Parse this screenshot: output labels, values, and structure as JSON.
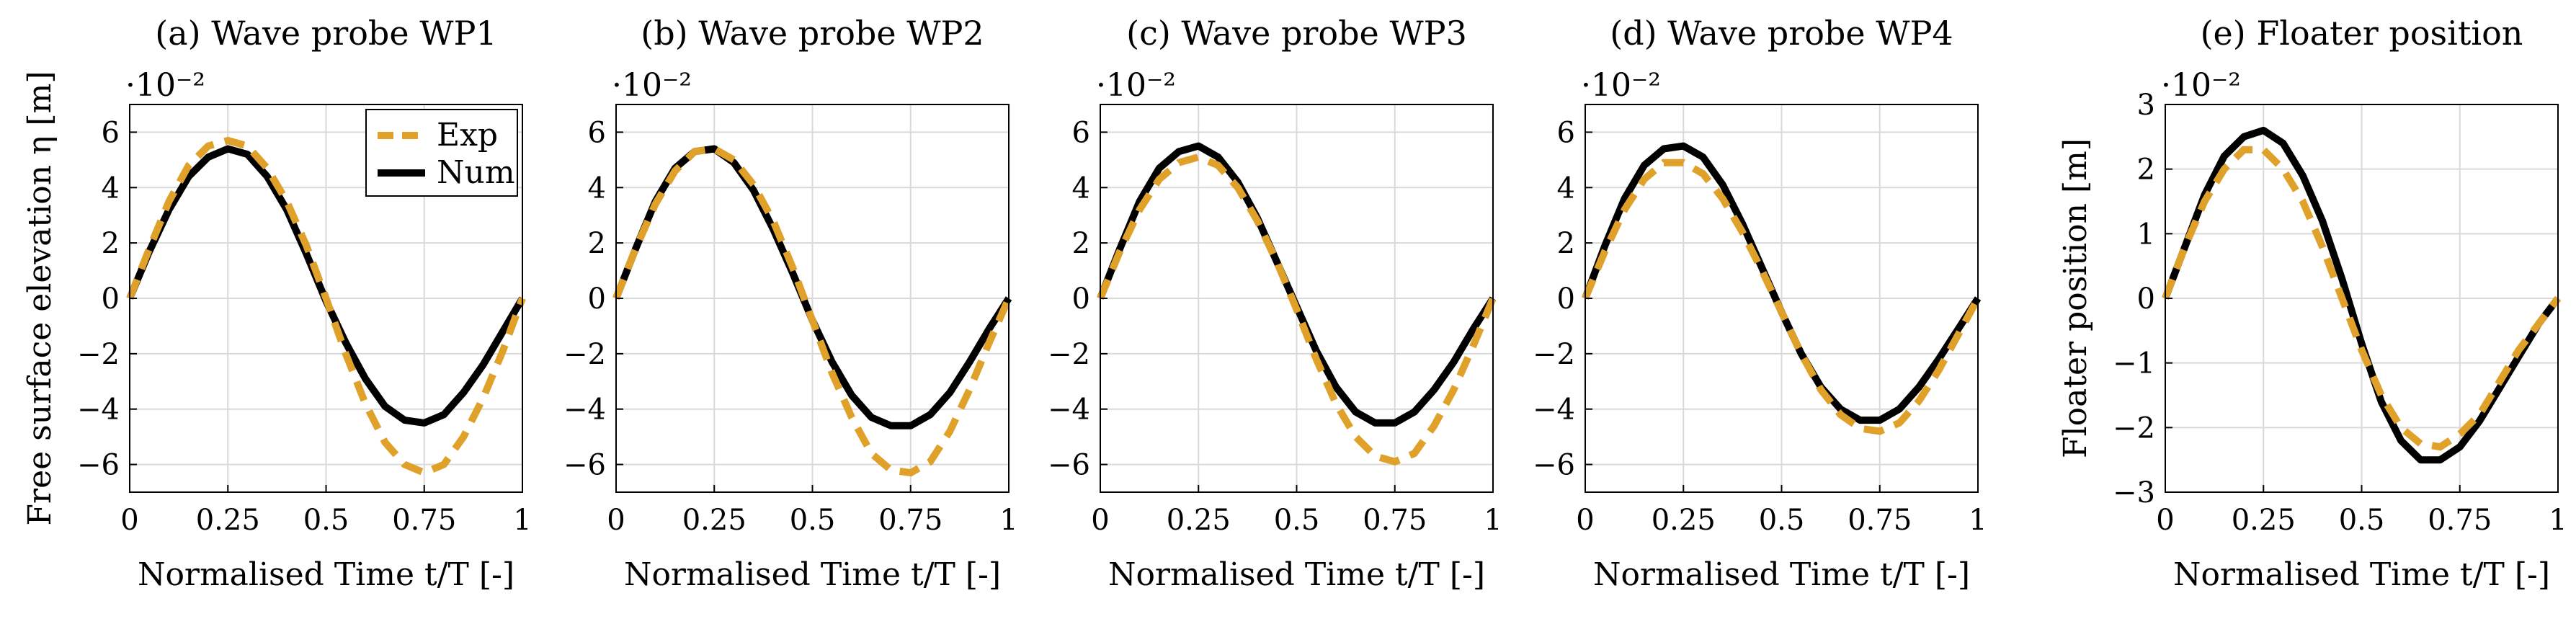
{
  "figure": {
    "legend": {
      "exp_label": "Exp",
      "num_label": "Num",
      "exp_color": "#e0a12a",
      "num_color": "#000000"
    },
    "grid": true
  },
  "chart_data": [
    {
      "type": "line",
      "title": "(a) Wave probe WP1",
      "xlabel": "Normalised Time t/T [-]",
      "ylabel": "Free surface elevation η [m]",
      "y_exponent": "·10⁻²",
      "xlim": [
        0,
        1
      ],
      "ylim": [
        -7,
        7
      ],
      "xticks": [
        0,
        0.25,
        0.5,
        0.75,
        1
      ],
      "xtick_labels": [
        "0",
        "0.25",
        "0.5",
        "0.75",
        "1"
      ],
      "yticks": [
        -6,
        -4,
        -2,
        0,
        2,
        4,
        6
      ],
      "ytick_labels": [
        "−6",
        "−4",
        "−2",
        "0",
        "2",
        "4",
        "6"
      ],
      "legend_shown": true,
      "series": [
        {
          "name": "Exp",
          "x": [
            0,
            0.05,
            0.1,
            0.15,
            0.2,
            0.25,
            0.3,
            0.35,
            0.4,
            0.45,
            0.5,
            0.55,
            0.6,
            0.65,
            0.7,
            0.75,
            0.8,
            0.85,
            0.9,
            0.95,
            1
          ],
          "y": [
            0,
            1.8,
            3.5,
            4.8,
            5.5,
            5.7,
            5.5,
            4.7,
            3.5,
            1.9,
            0,
            -2.0,
            -3.8,
            -5.2,
            -6.0,
            -6.3,
            -6.0,
            -5.0,
            -3.6,
            -1.9,
            0
          ]
        },
        {
          "name": "Num",
          "x": [
            0,
            0.05,
            0.1,
            0.15,
            0.2,
            0.25,
            0.3,
            0.35,
            0.4,
            0.45,
            0.5,
            0.55,
            0.6,
            0.65,
            0.7,
            0.75,
            0.8,
            0.85,
            0.9,
            0.95,
            1
          ],
          "y": [
            0,
            1.7,
            3.2,
            4.4,
            5.1,
            5.4,
            5.2,
            4.4,
            3.2,
            1.6,
            -0.1,
            -1.6,
            -2.9,
            -3.9,
            -4.4,
            -4.5,
            -4.2,
            -3.4,
            -2.4,
            -1.2,
            0
          ]
        }
      ]
    },
    {
      "type": "line",
      "title": "(b) Wave probe WP2",
      "xlabel": "Normalised Time t/T [-]",
      "ylabel": "",
      "y_exponent": "·10⁻²",
      "xlim": [
        0,
        1
      ],
      "ylim": [
        -7,
        7
      ],
      "xticks": [
        0,
        0.25,
        0.5,
        0.75,
        1
      ],
      "xtick_labels": [
        "0",
        "0.25",
        "0.5",
        "0.75",
        "1"
      ],
      "yticks": [
        -6,
        -4,
        -2,
        0,
        2,
        4,
        6
      ],
      "ytick_labels": [
        "−6",
        "−4",
        "−2",
        "0",
        "2",
        "4",
        "6"
      ],
      "legend_shown": false,
      "series": [
        {
          "name": "Exp",
          "x": [
            0,
            0.05,
            0.1,
            0.15,
            0.2,
            0.25,
            0.3,
            0.35,
            0.4,
            0.45,
            0.5,
            0.55,
            0.6,
            0.65,
            0.7,
            0.75,
            0.8,
            0.85,
            0.9,
            0.95,
            1
          ],
          "y": [
            0,
            1.8,
            3.4,
            4.6,
            5.3,
            5.4,
            5.0,
            4.1,
            2.8,
            1.1,
            -0.8,
            -2.7,
            -4.3,
            -5.6,
            -6.2,
            -6.3,
            -5.9,
            -4.8,
            -3.3,
            -1.6,
            0
          ]
        },
        {
          "name": "Num",
          "x": [
            0,
            0.05,
            0.1,
            0.15,
            0.2,
            0.25,
            0.3,
            0.35,
            0.4,
            0.45,
            0.5,
            0.55,
            0.6,
            0.65,
            0.7,
            0.75,
            0.8,
            0.85,
            0.9,
            0.95,
            1
          ],
          "y": [
            0,
            1.8,
            3.5,
            4.7,
            5.3,
            5.4,
            4.9,
            3.9,
            2.5,
            0.9,
            -0.8,
            -2.3,
            -3.5,
            -4.3,
            -4.6,
            -4.6,
            -4.2,
            -3.4,
            -2.3,
            -1.1,
            0
          ]
        }
      ]
    },
    {
      "type": "line",
      "title": "(c) Wave probe WP3",
      "xlabel": "Normalised Time t/T [-]",
      "ylabel": "",
      "y_exponent": "·10⁻²",
      "xlim": [
        0,
        1
      ],
      "ylim": [
        -7,
        7
      ],
      "xticks": [
        0,
        0.25,
        0.5,
        0.75,
        1
      ],
      "xtick_labels": [
        "0",
        "0.25",
        "0.5",
        "0.75",
        "1"
      ],
      "yticks": [
        -6,
        -4,
        -2,
        0,
        2,
        4,
        6
      ],
      "ytick_labels": [
        "−6",
        "−4",
        "−2",
        "0",
        "2",
        "4",
        "6"
      ],
      "legend_shown": false,
      "series": [
        {
          "name": "Exp",
          "x": [
            0,
            0.05,
            0.1,
            0.15,
            0.2,
            0.25,
            0.3,
            0.35,
            0.4,
            0.45,
            0.5,
            0.55,
            0.6,
            0.65,
            0.7,
            0.75,
            0.8,
            0.85,
            0.9,
            0.95,
            1
          ],
          "y": [
            0,
            1.7,
            3.2,
            4.3,
            4.9,
            5.1,
            4.8,
            4.0,
            2.8,
            1.3,
            -0.4,
            -2.2,
            -3.8,
            -5.0,
            -5.7,
            -5.9,
            -5.6,
            -4.6,
            -3.3,
            -1.7,
            0
          ]
        },
        {
          "name": "Num",
          "x": [
            0,
            0.05,
            0.1,
            0.15,
            0.2,
            0.25,
            0.3,
            0.35,
            0.4,
            0.45,
            0.5,
            0.55,
            0.6,
            0.65,
            0.7,
            0.75,
            0.8,
            0.85,
            0.9,
            0.95,
            1
          ],
          "y": [
            0,
            1.8,
            3.5,
            4.7,
            5.3,
            5.5,
            5.1,
            4.2,
            2.9,
            1.3,
            -0.3,
            -1.9,
            -3.2,
            -4.1,
            -4.5,
            -4.5,
            -4.1,
            -3.3,
            -2.3,
            -1.1,
            0
          ]
        }
      ]
    },
    {
      "type": "line",
      "title": "(d) Wave probe WP4",
      "xlabel": "Normalised Time t/T [-]",
      "ylabel": "",
      "y_exponent": "·10⁻²",
      "xlim": [
        0,
        1
      ],
      "ylim": [
        -7,
        7
      ],
      "xticks": [
        0,
        0.25,
        0.5,
        0.75,
        1
      ],
      "xtick_labels": [
        "0",
        "0.25",
        "0.5",
        "0.75",
        "1"
      ],
      "yticks": [
        -6,
        -4,
        -2,
        0,
        2,
        4,
        6
      ],
      "ytick_labels": [
        "−6",
        "−4",
        "−2",
        "0",
        "2",
        "4",
        "6"
      ],
      "legend_shown": false,
      "series": [
        {
          "name": "Exp",
          "x": [
            0,
            0.05,
            0.1,
            0.15,
            0.2,
            0.25,
            0.3,
            0.35,
            0.4,
            0.45,
            0.5,
            0.55,
            0.6,
            0.65,
            0.7,
            0.75,
            0.8,
            0.85,
            0.9,
            0.95,
            1
          ],
          "y": [
            0,
            1.7,
            3.2,
            4.3,
            4.9,
            4.9,
            4.5,
            3.6,
            2.4,
            1.0,
            -0.5,
            -2.0,
            -3.3,
            -4.2,
            -4.7,
            -4.8,
            -4.5,
            -3.7,
            -2.6,
            -1.3,
            0
          ]
        },
        {
          "name": "Num",
          "x": [
            0,
            0.05,
            0.1,
            0.15,
            0.2,
            0.25,
            0.3,
            0.35,
            0.4,
            0.45,
            0.5,
            0.55,
            0.6,
            0.65,
            0.7,
            0.75,
            0.8,
            0.85,
            0.9,
            0.95,
            1
          ],
          "y": [
            0,
            1.9,
            3.6,
            4.8,
            5.4,
            5.5,
            5.1,
            4.1,
            2.7,
            1.1,
            -0.5,
            -2.0,
            -3.2,
            -4.0,
            -4.4,
            -4.4,
            -4.0,
            -3.2,
            -2.2,
            -1.1,
            0
          ]
        }
      ]
    },
    {
      "type": "line",
      "title": "(e) Floater position",
      "xlabel": "Normalised Time t/T [-]",
      "ylabel": "Floater position [m]",
      "y_exponent": "·10⁻²",
      "xlim": [
        0,
        1
      ],
      "ylim": [
        -3,
        3
      ],
      "xticks": [
        0,
        0.25,
        0.5,
        0.75,
        1
      ],
      "xtick_labels": [
        "0",
        "0.25",
        "0.5",
        "0.75",
        "1"
      ],
      "yticks": [
        -3,
        -2,
        -1,
        0,
        1,
        2,
        3
      ],
      "ytick_labels": [
        "−3",
        "−2",
        "−1",
        "0",
        "1",
        "2",
        "3"
      ],
      "legend_shown": false,
      "series": [
        {
          "name": "Exp",
          "x": [
            0,
            0.05,
            0.1,
            0.15,
            0.2,
            0.25,
            0.3,
            0.35,
            0.4,
            0.45,
            0.5,
            0.55,
            0.6,
            0.65,
            0.7,
            0.75,
            0.8,
            0.85,
            0.9,
            0.95,
            1
          ],
          "y": [
            0,
            0.8,
            1.5,
            2.0,
            2.3,
            2.3,
            2.0,
            1.5,
            0.8,
            0.0,
            -0.8,
            -1.5,
            -2.0,
            -2.25,
            -2.3,
            -2.1,
            -1.8,
            -1.3,
            -0.8,
            -0.4,
            0
          ]
        },
        {
          "name": "Num",
          "x": [
            0,
            0.05,
            0.1,
            0.15,
            0.2,
            0.25,
            0.3,
            0.35,
            0.4,
            0.45,
            0.5,
            0.55,
            0.6,
            0.65,
            0.7,
            0.75,
            0.8,
            0.85,
            0.9,
            0.95,
            1
          ],
          "y": [
            0,
            0.8,
            1.6,
            2.2,
            2.5,
            2.6,
            2.4,
            1.9,
            1.2,
            0.3,
            -0.7,
            -1.6,
            -2.2,
            -2.5,
            -2.5,
            -2.3,
            -1.9,
            -1.4,
            -0.9,
            -0.4,
            0
          ]
        }
      ]
    }
  ]
}
